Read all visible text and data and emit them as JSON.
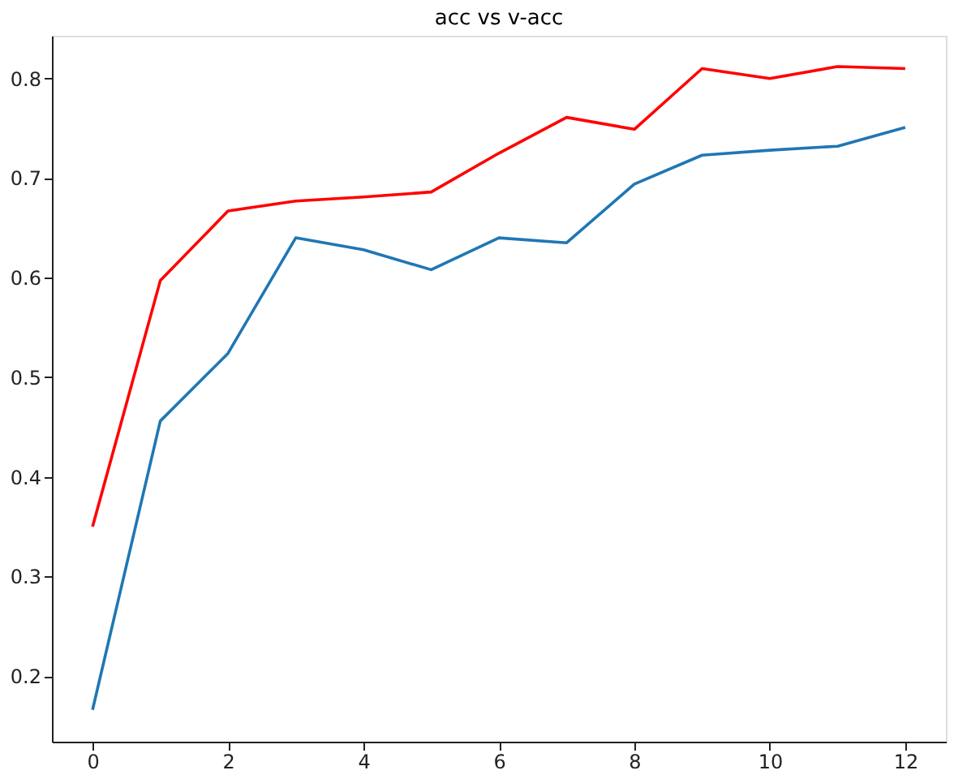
{
  "chart_data": {
    "type": "line",
    "title": "acc vs v-acc",
    "x": [
      0,
      1,
      2,
      3,
      4,
      5,
      6,
      7,
      8,
      9,
      10,
      11,
      12
    ],
    "series": [
      {
        "color": "#1f77b4",
        "values": [
          0.166,
          0.456,
          0.524,
          0.64,
          0.628,
          0.608,
          0.64,
          0.635,
          0.694,
          0.723,
          0.728,
          0.732,
          0.751
        ]
      },
      {
        "color": "#ff0000",
        "values": [
          0.35,
          0.597,
          0.667,
          0.677,
          0.681,
          0.686,
          0.725,
          0.761,
          0.749,
          0.81,
          0.8,
          0.812,
          0.81
        ]
      }
    ],
    "xlim": [
      -0.6,
      12.6
    ],
    "ylim": [
      0.134,
      0.843
    ],
    "xticks": [
      0,
      2,
      4,
      6,
      8,
      10,
      12
    ],
    "yticks": [
      0.2,
      0.3,
      0.4,
      0.5,
      0.6,
      0.7,
      0.8
    ],
    "grid": false,
    "marker": "none",
    "line_style": "solid"
  }
}
